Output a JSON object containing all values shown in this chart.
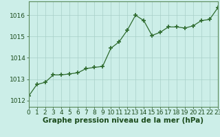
{
  "x": [
    0,
    1,
    2,
    3,
    4,
    5,
    6,
    7,
    8,
    9,
    10,
    11,
    12,
    13,
    14,
    15,
    16,
    17,
    18,
    19,
    20,
    21,
    22,
    23
  ],
  "y": [
    1012.2,
    1012.75,
    1012.85,
    1013.2,
    1013.2,
    1013.25,
    1013.3,
    1013.5,
    1013.55,
    1013.6,
    1014.45,
    1014.75,
    1015.3,
    1016.0,
    1015.75,
    1015.05,
    1015.2,
    1015.45,
    1015.45,
    1015.4,
    1015.5,
    1015.75,
    1015.8,
    1016.35
  ],
  "line_color": "#2d6a2d",
  "marker_color": "#2d6a2d",
  "bg_color": "#cceee8",
  "grid_color": "#a8cfc8",
  "xlabel": "Graphe pression niveau de la mer (hPa)",
  "xlabel_color": "#1a4a1a",
  "ylabel_ticks": [
    1012,
    1013,
    1014,
    1015,
    1016
  ],
  "xlim": [
    0,
    23
  ],
  "ylim": [
    1011.7,
    1016.65
  ],
  "axis_label_fontsize": 6.5,
  "xlabel_fontsize": 7.5,
  "tick_color": "#1a4a1a",
  "spine_color": "#5a8a5a"
}
